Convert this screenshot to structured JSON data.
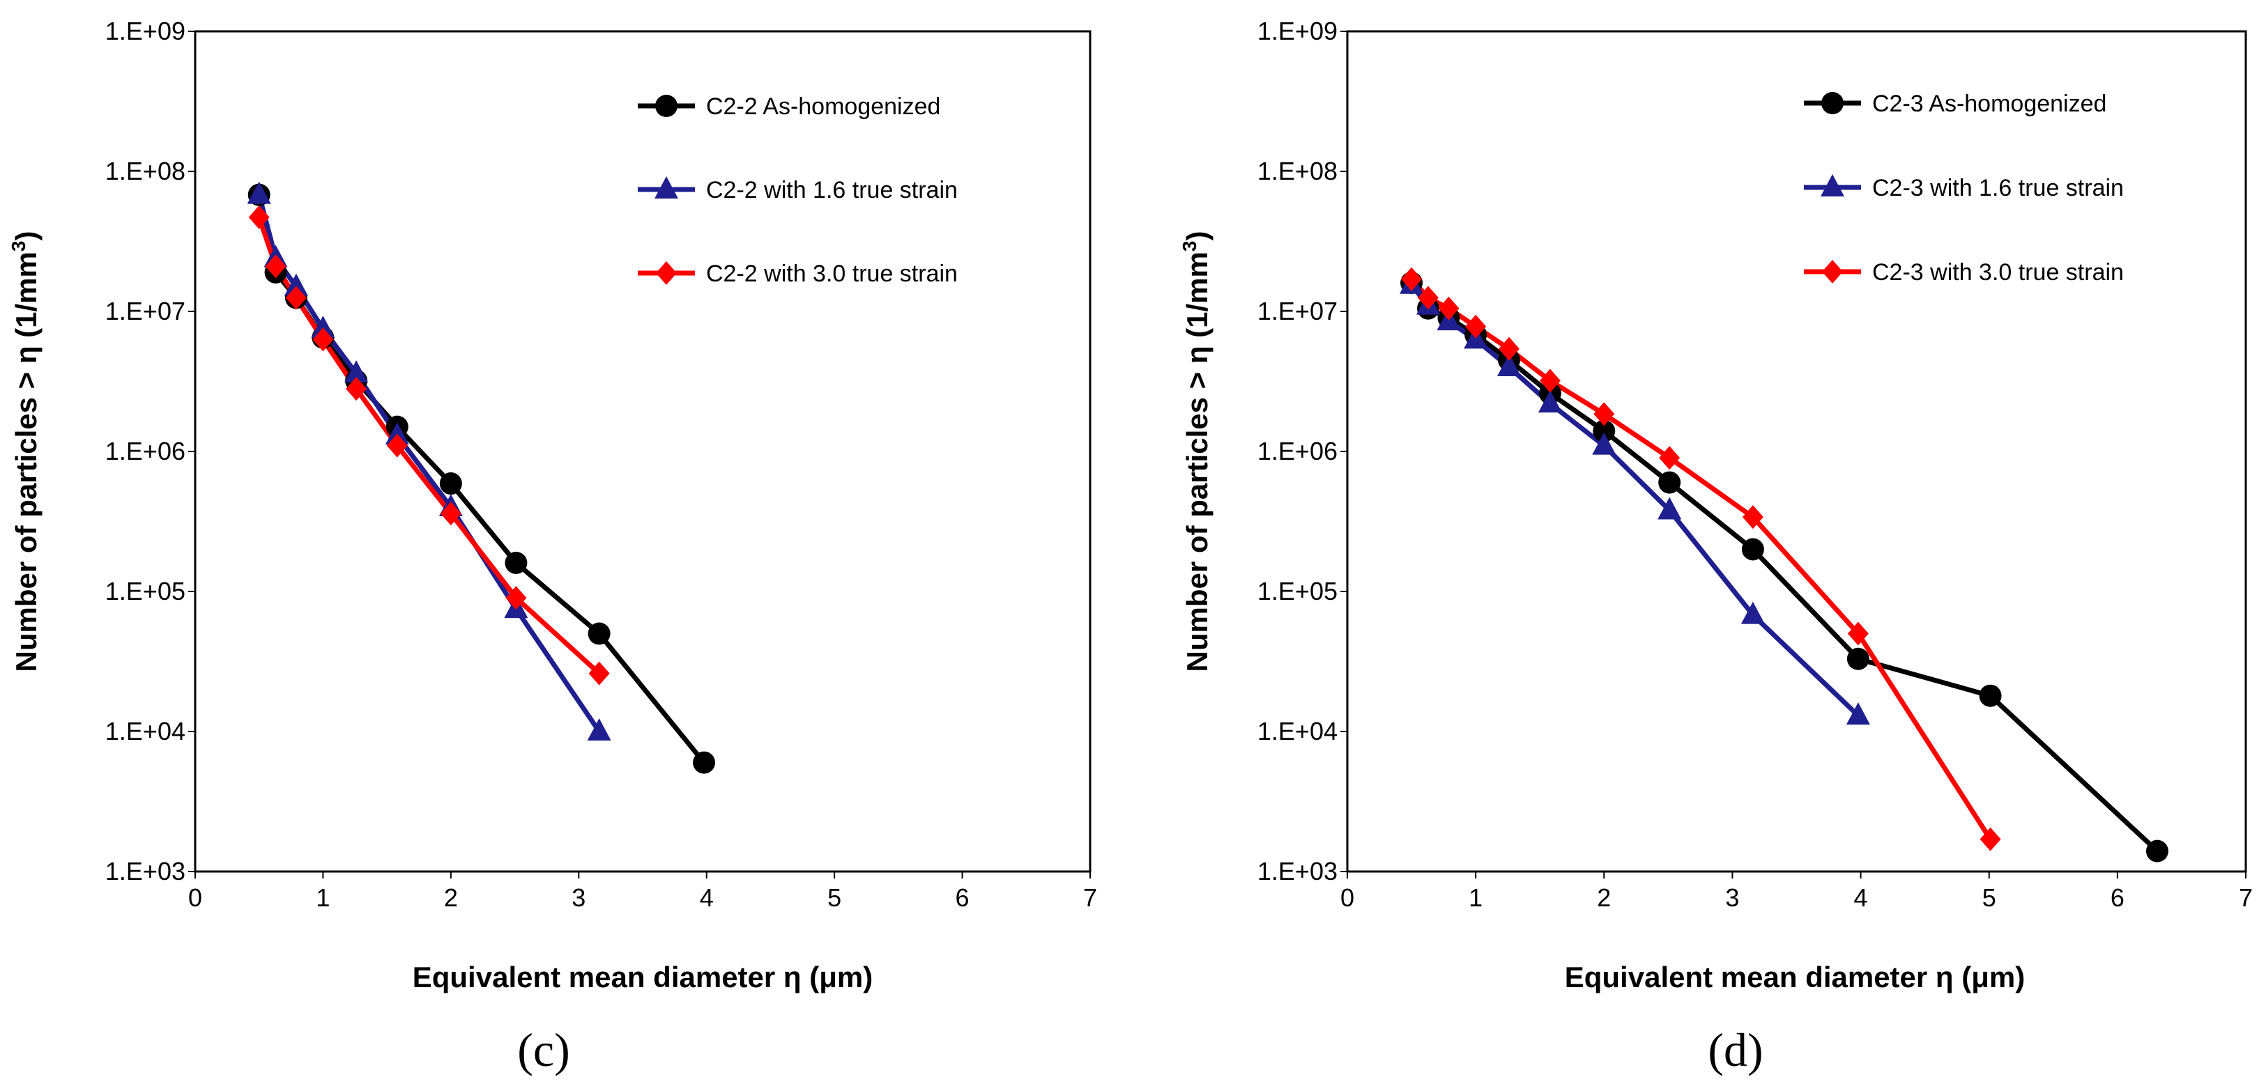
{
  "chart_data": [
    {
      "type": "line",
      "panel_label": "(c)",
      "xlabel": "Equivalent mean diameter η (μm)",
      "ylabel_main": "Number of particles > η (1/mm",
      "ylabel_sup": "3",
      "ylabel_end": ")",
      "xlim": [
        0,
        7
      ],
      "ylim": [
        1000,
        1000000000
      ],
      "yscale": "log",
      "x_ticks": [
        "0",
        "1",
        "2",
        "3",
        "4",
        "5",
        "6",
        "7"
      ],
      "y_ticks": [
        "1.E+03",
        "1.E+04",
        "1.E+05",
        "1.E+06",
        "1.E+07",
        "1.E+08",
        "1.E+09"
      ],
      "legend_position": "top-right",
      "series": [
        {
          "name": "C2-2 As-homogenized",
          "color": "#000000",
          "marker": "circle",
          "x": [
            0.5,
            0.63,
            0.79,
            1.0,
            1.26,
            1.58,
            2.0,
            2.51,
            3.16,
            3.98
          ],
          "y": [
            68000000,
            19000000,
            12500000,
            6500000,
            3200000,
            1500000,
            590000,
            160000,
            50000,
            6000
          ]
        },
        {
          "name": "C2-2 with 1.6 true strain",
          "color": "#1f1f8f",
          "marker": "triangle",
          "x": [
            0.5,
            0.63,
            0.79,
            1.0,
            1.26,
            1.58,
            2.0,
            2.51,
            3.16
          ],
          "y": [
            68000000,
            24000000,
            15000000,
            7500000,
            3600000,
            1300000,
            400000,
            75000,
            10000
          ]
        },
        {
          "name": "C2-2 with 3.0 true strain",
          "color": "#ff0000",
          "marker": "diamond",
          "x": [
            0.5,
            0.63,
            0.79,
            1.0,
            1.26,
            1.58,
            2.0,
            2.51,
            3.16
          ],
          "y": [
            47000000,
            21000000,
            12500000,
            6300000,
            2800000,
            1100000,
            360000,
            90000,
            26000
          ]
        }
      ]
    },
    {
      "type": "line",
      "panel_label": "(d)",
      "xlabel": "Equivalent mean diameter η (μm)",
      "ylabel_main": "Number of particles > η (1/mm",
      "ylabel_sup": "3",
      "ylabel_end": ")",
      "xlim": [
        0,
        7
      ],
      "ylim": [
        1000,
        1000000000
      ],
      "yscale": "log",
      "x_ticks": [
        "0",
        "1",
        "2",
        "3",
        "4",
        "5",
        "6",
        "7"
      ],
      "y_ticks": [
        "1.E+03",
        "1.E+04",
        "1.E+05",
        "1.E+06",
        "1.E+07",
        "1.E+08",
        "1.E+09"
      ],
      "legend_position": "top-right",
      "series": [
        {
          "name": "C2-3 As-homogenized",
          "color": "#000000",
          "marker": "circle",
          "x": [
            0.5,
            0.63,
            0.79,
            1.0,
            1.26,
            1.58,
            2.0,
            2.51,
            3.16,
            3.98,
            5.01,
            6.31
          ],
          "y": [
            16000000,
            10500000,
            9000000,
            6800000,
            4500000,
            2600000,
            1400000,
            600000,
            200000,
            33000,
            18000,
            1400
          ]
        },
        {
          "name": "C2-3 with 1.6 true strain",
          "color": "#1f1f8f",
          "marker": "triangle",
          "x": [
            0.5,
            0.63,
            0.79,
            1.0,
            1.26,
            1.58,
            2.0,
            2.51,
            3.16,
            3.98
          ],
          "y": [
            15500000,
            11000000,
            8500000,
            6300000,
            4000000,
            2200000,
            1100000,
            380000,
            68000,
            13000
          ]
        },
        {
          "name": "C2-3 with 3.0 true strain",
          "color": "#ff0000",
          "marker": "diamond",
          "x": [
            0.5,
            0.63,
            0.79,
            1.0,
            1.26,
            1.58,
            2.0,
            2.51,
            3.16,
            3.98,
            5.01
          ],
          "y": [
            17000000,
            12500000,
            10500000,
            7800000,
            5400000,
            3200000,
            1850000,
            900000,
            340000,
            50000,
            1700
          ]
        }
      ]
    }
  ]
}
